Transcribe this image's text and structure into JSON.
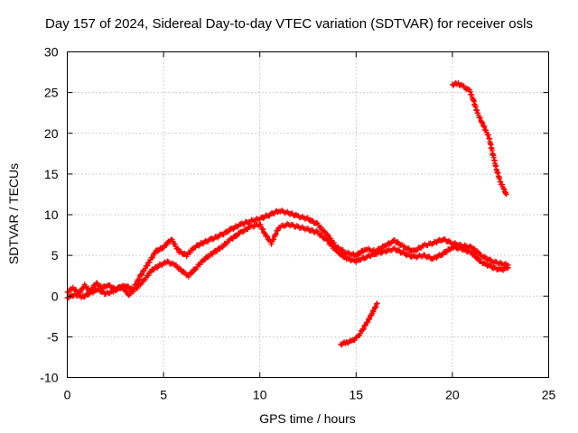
{
  "chart_data": {
    "type": "scatter",
    "title": "Day 157 of 2024, Sidereal Day-to-day VTEC variation (SDTVAR) for receiver osls",
    "xlabel": "GPS time / hours",
    "ylabel": "SDTVAR / TECUs",
    "xlim": [
      0,
      25
    ],
    "ylim": [
      -10,
      30
    ],
    "xticks": [
      0,
      5,
      10,
      15,
      20,
      25
    ],
    "yticks": [
      -10,
      -5,
      0,
      5,
      10,
      15,
      20,
      25,
      30
    ],
    "grid": true,
    "marker": "+",
    "color": "#ff0000",
    "series": [
      {
        "name": "track-main-upper",
        "points": [
          [
            0,
            0.5
          ],
          [
            0.3,
            1.0
          ],
          [
            0.6,
            0.3
          ],
          [
            0.9,
            1.3
          ],
          [
            1.2,
            0.6
          ],
          [
            1.5,
            1.6
          ],
          [
            1.8,
            1.0
          ],
          [
            2.1,
            1.4
          ],
          [
            2.5,
            0.8
          ],
          [
            3.0,
            1.3
          ],
          [
            3.4,
            0.8
          ],
          [
            3.8,
            2.5
          ],
          [
            4.2,
            4.0
          ],
          [
            4.6,
            5.5
          ],
          [
            5.0,
            6.0
          ],
          [
            5.4,
            7.0
          ],
          [
            5.8,
            5.5
          ],
          [
            6.2,
            5.0
          ],
          [
            6.6,
            6.0
          ],
          [
            7.0,
            6.5
          ],
          [
            7.5,
            7.0
          ],
          [
            8.0,
            7.5
          ],
          [
            8.5,
            8.2
          ],
          [
            9.0,
            8.8
          ],
          [
            9.5,
            9.2
          ],
          [
            10.0,
            9.5
          ],
          [
            10.5,
            10.0
          ],
          [
            11.0,
            10.5
          ],
          [
            11.5,
            10.2
          ],
          [
            12.0,
            9.8
          ],
          [
            12.5,
            9.5
          ],
          [
            13.0,
            8.8
          ],
          [
            13.5,
            7.5
          ],
          [
            14.0,
            6.0
          ],
          [
            14.5,
            5.3
          ],
          [
            15.0,
            5.0
          ],
          [
            15.5,
            5.8
          ],
          [
            16.0,
            5.5
          ],
          [
            16.5,
            6.2
          ],
          [
            17.0,
            6.8
          ],
          [
            17.5,
            6.0
          ],
          [
            18.0,
            5.5
          ],
          [
            18.5,
            6.2
          ],
          [
            19.0,
            6.5
          ],
          [
            19.5,
            7.0
          ],
          [
            20.0,
            6.5
          ],
          [
            20.5,
            6.2
          ],
          [
            21.0,
            6.0
          ],
          [
            21.5,
            5.0
          ],
          [
            22.0,
            4.3
          ],
          [
            22.5,
            4.0
          ],
          [
            22.9,
            3.8
          ]
        ]
      },
      {
        "name": "track-main-lower",
        "points": [
          [
            0,
            -0.2
          ],
          [
            0.4,
            0.2
          ],
          [
            0.8,
            -0.1
          ],
          [
            1.2,
            0.4
          ],
          [
            1.6,
            0.8
          ],
          [
            2.0,
            0.3
          ],
          [
            2.4,
            0.6
          ],
          [
            2.8,
            1.2
          ],
          [
            3.2,
            0.2
          ],
          [
            3.6,
            1.0
          ],
          [
            4.0,
            2.0
          ],
          [
            4.4,
            3.2
          ],
          [
            4.8,
            3.8
          ],
          [
            5.2,
            4.2
          ],
          [
            5.6,
            3.8
          ],
          [
            6.0,
            3.0
          ],
          [
            6.3,
            2.5
          ],
          [
            6.7,
            3.5
          ],
          [
            7.1,
            4.5
          ],
          [
            7.5,
            5.2
          ],
          [
            8.0,
            6.0
          ],
          [
            8.5,
            7.0
          ],
          [
            9.0,
            7.8
          ],
          [
            9.5,
            8.5
          ],
          [
            10.0,
            8.8
          ],
          [
            10.3,
            7.5
          ],
          [
            10.6,
            6.5
          ],
          [
            11.0,
            8.5
          ],
          [
            11.5,
            8.8
          ],
          [
            12.0,
            8.5
          ],
          [
            12.5,
            8.2
          ],
          [
            13.0,
            7.8
          ],
          [
            13.5,
            6.8
          ],
          [
            14.0,
            5.5
          ],
          [
            14.5,
            4.6
          ],
          [
            15.0,
            4.3
          ],
          [
            15.5,
            4.8
          ],
          [
            16.0,
            5.2
          ],
          [
            16.5,
            5.5
          ],
          [
            17.0,
            5.8
          ],
          [
            17.5,
            5.2
          ],
          [
            18.0,
            4.8
          ],
          [
            18.5,
            5.0
          ],
          [
            19.0,
            4.6
          ],
          [
            19.5,
            5.2
          ],
          [
            20.0,
            6.0
          ],
          [
            20.5,
            5.8
          ],
          [
            21.0,
            5.3
          ],
          [
            21.5,
            4.2
          ],
          [
            22.0,
            3.6
          ],
          [
            22.5,
            3.2
          ],
          [
            22.9,
            3.5
          ]
        ]
      },
      {
        "name": "track-evening-decline",
        "points": [
          [
            20.0,
            26.0
          ],
          [
            20.3,
            26.1
          ],
          [
            20.6,
            25.7
          ],
          [
            20.9,
            25.2
          ],
          [
            21.1,
            24.0
          ],
          [
            21.3,
            22.5
          ],
          [
            21.6,
            21.0
          ],
          [
            21.9,
            19.5
          ],
          [
            22.1,
            17.5
          ],
          [
            22.3,
            15.5
          ],
          [
            22.5,
            14.0
          ],
          [
            22.7,
            13.0
          ],
          [
            22.8,
            12.5
          ]
        ]
      },
      {
        "name": "track-negative-arc",
        "points": [
          [
            14.2,
            -5.9
          ],
          [
            14.5,
            -5.7
          ],
          [
            14.8,
            -5.5
          ],
          [
            15.1,
            -5.0
          ],
          [
            15.3,
            -4.3
          ],
          [
            15.5,
            -3.5
          ],
          [
            15.7,
            -2.7
          ],
          [
            15.9,
            -1.8
          ],
          [
            16.1,
            -0.9
          ]
        ]
      }
    ]
  }
}
